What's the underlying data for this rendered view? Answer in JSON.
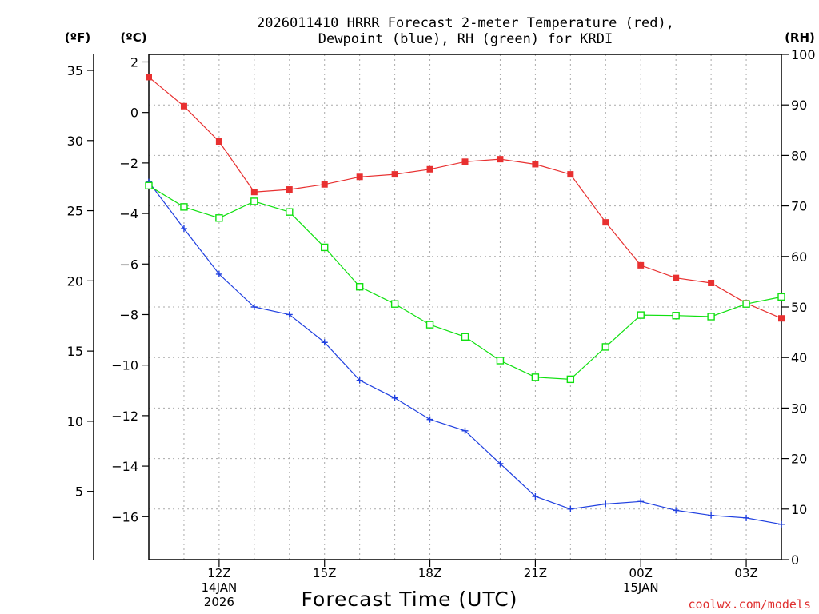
{
  "chart_data": {
    "type": "line",
    "title_lines": [
      "2026011410 HRRR Forecast 2-meter Temperature (red),",
      "Dewpoint (blue), RH (green) for KRDI"
    ],
    "xlabel": "Forecast Time (UTC)",
    "credit": "coolwx.com/models",
    "units": {
      "fahrenheit": "(ºF)",
      "celsius": "(ºC)",
      "rh": "(RH)"
    },
    "x_range": [
      10,
      28
    ],
    "left_axis_c": {
      "range": [
        -17.7,
        2.3
      ],
      "ticks": [
        2,
        0,
        -2,
        -4,
        -6,
        -8,
        -10,
        -12,
        -14,
        -16
      ]
    },
    "left_axis_f": {
      "ticks": [
        35,
        30,
        25,
        20,
        15,
        10,
        5
      ]
    },
    "right_axis_rh": {
      "range": [
        0,
        100
      ],
      "ticks": [
        0,
        10,
        20,
        30,
        40,
        50,
        60,
        70,
        80,
        90,
        100
      ]
    },
    "x_ticks": [
      {
        "hour": 12,
        "labels": [
          "12Z",
          "14JAN",
          "2026"
        ]
      },
      {
        "hour": 15,
        "labels": [
          "15Z"
        ]
      },
      {
        "hour": 18,
        "labels": [
          "18Z"
        ]
      },
      {
        "hour": 21,
        "labels": [
          "21Z"
        ]
      },
      {
        "hour": 24,
        "labels": [
          "00Z",
          "15JAN"
        ]
      },
      {
        "hour": 27,
        "labels": [
          "03Z"
        ]
      }
    ],
    "x_hours": [
      10,
      11,
      12,
      13,
      14,
      15,
      16,
      17,
      18,
      19,
      20,
      21,
      22,
      23,
      24,
      25,
      26,
      27,
      28
    ],
    "series": [
      {
        "name": "Temperature (°C)",
        "color": "#e83030",
        "marker": "filled-square",
        "axis": "celsius",
        "values": [
          1.4,
          0.25,
          -1.15,
          -3.15,
          -3.05,
          -2.85,
          -2.55,
          -2.45,
          -2.25,
          -1.95,
          -1.85,
          -2.05,
          -2.45,
          -4.35,
          -6.05,
          -6.55,
          -6.75,
          -7.55,
          -8.15
        ]
      },
      {
        "name": "Dewpoint (°C)",
        "color": "#2040e0",
        "marker": "plus",
        "axis": "celsius",
        "values": [
          -2.75,
          -4.6,
          -6.4,
          -7.7,
          -8.0,
          -9.1,
          -10.6,
          -11.3,
          -12.15,
          -12.6,
          -13.9,
          -15.2,
          -15.7,
          -15.5,
          -15.4,
          -15.75,
          -15.95,
          -16.05,
          -16.3
        ]
      },
      {
        "name": "RH (%)",
        "color": "#10e010",
        "marker": "open-square",
        "axis": "rh",
        "values": [
          74,
          69.8,
          67.6,
          70.9,
          68.8,
          61.8,
          54.0,
          50.6,
          46.5,
          44.1,
          39.4,
          36.1,
          35.7,
          42.1,
          48.4,
          48.3,
          48.1,
          50.6,
          52.0
        ]
      }
    ]
  }
}
